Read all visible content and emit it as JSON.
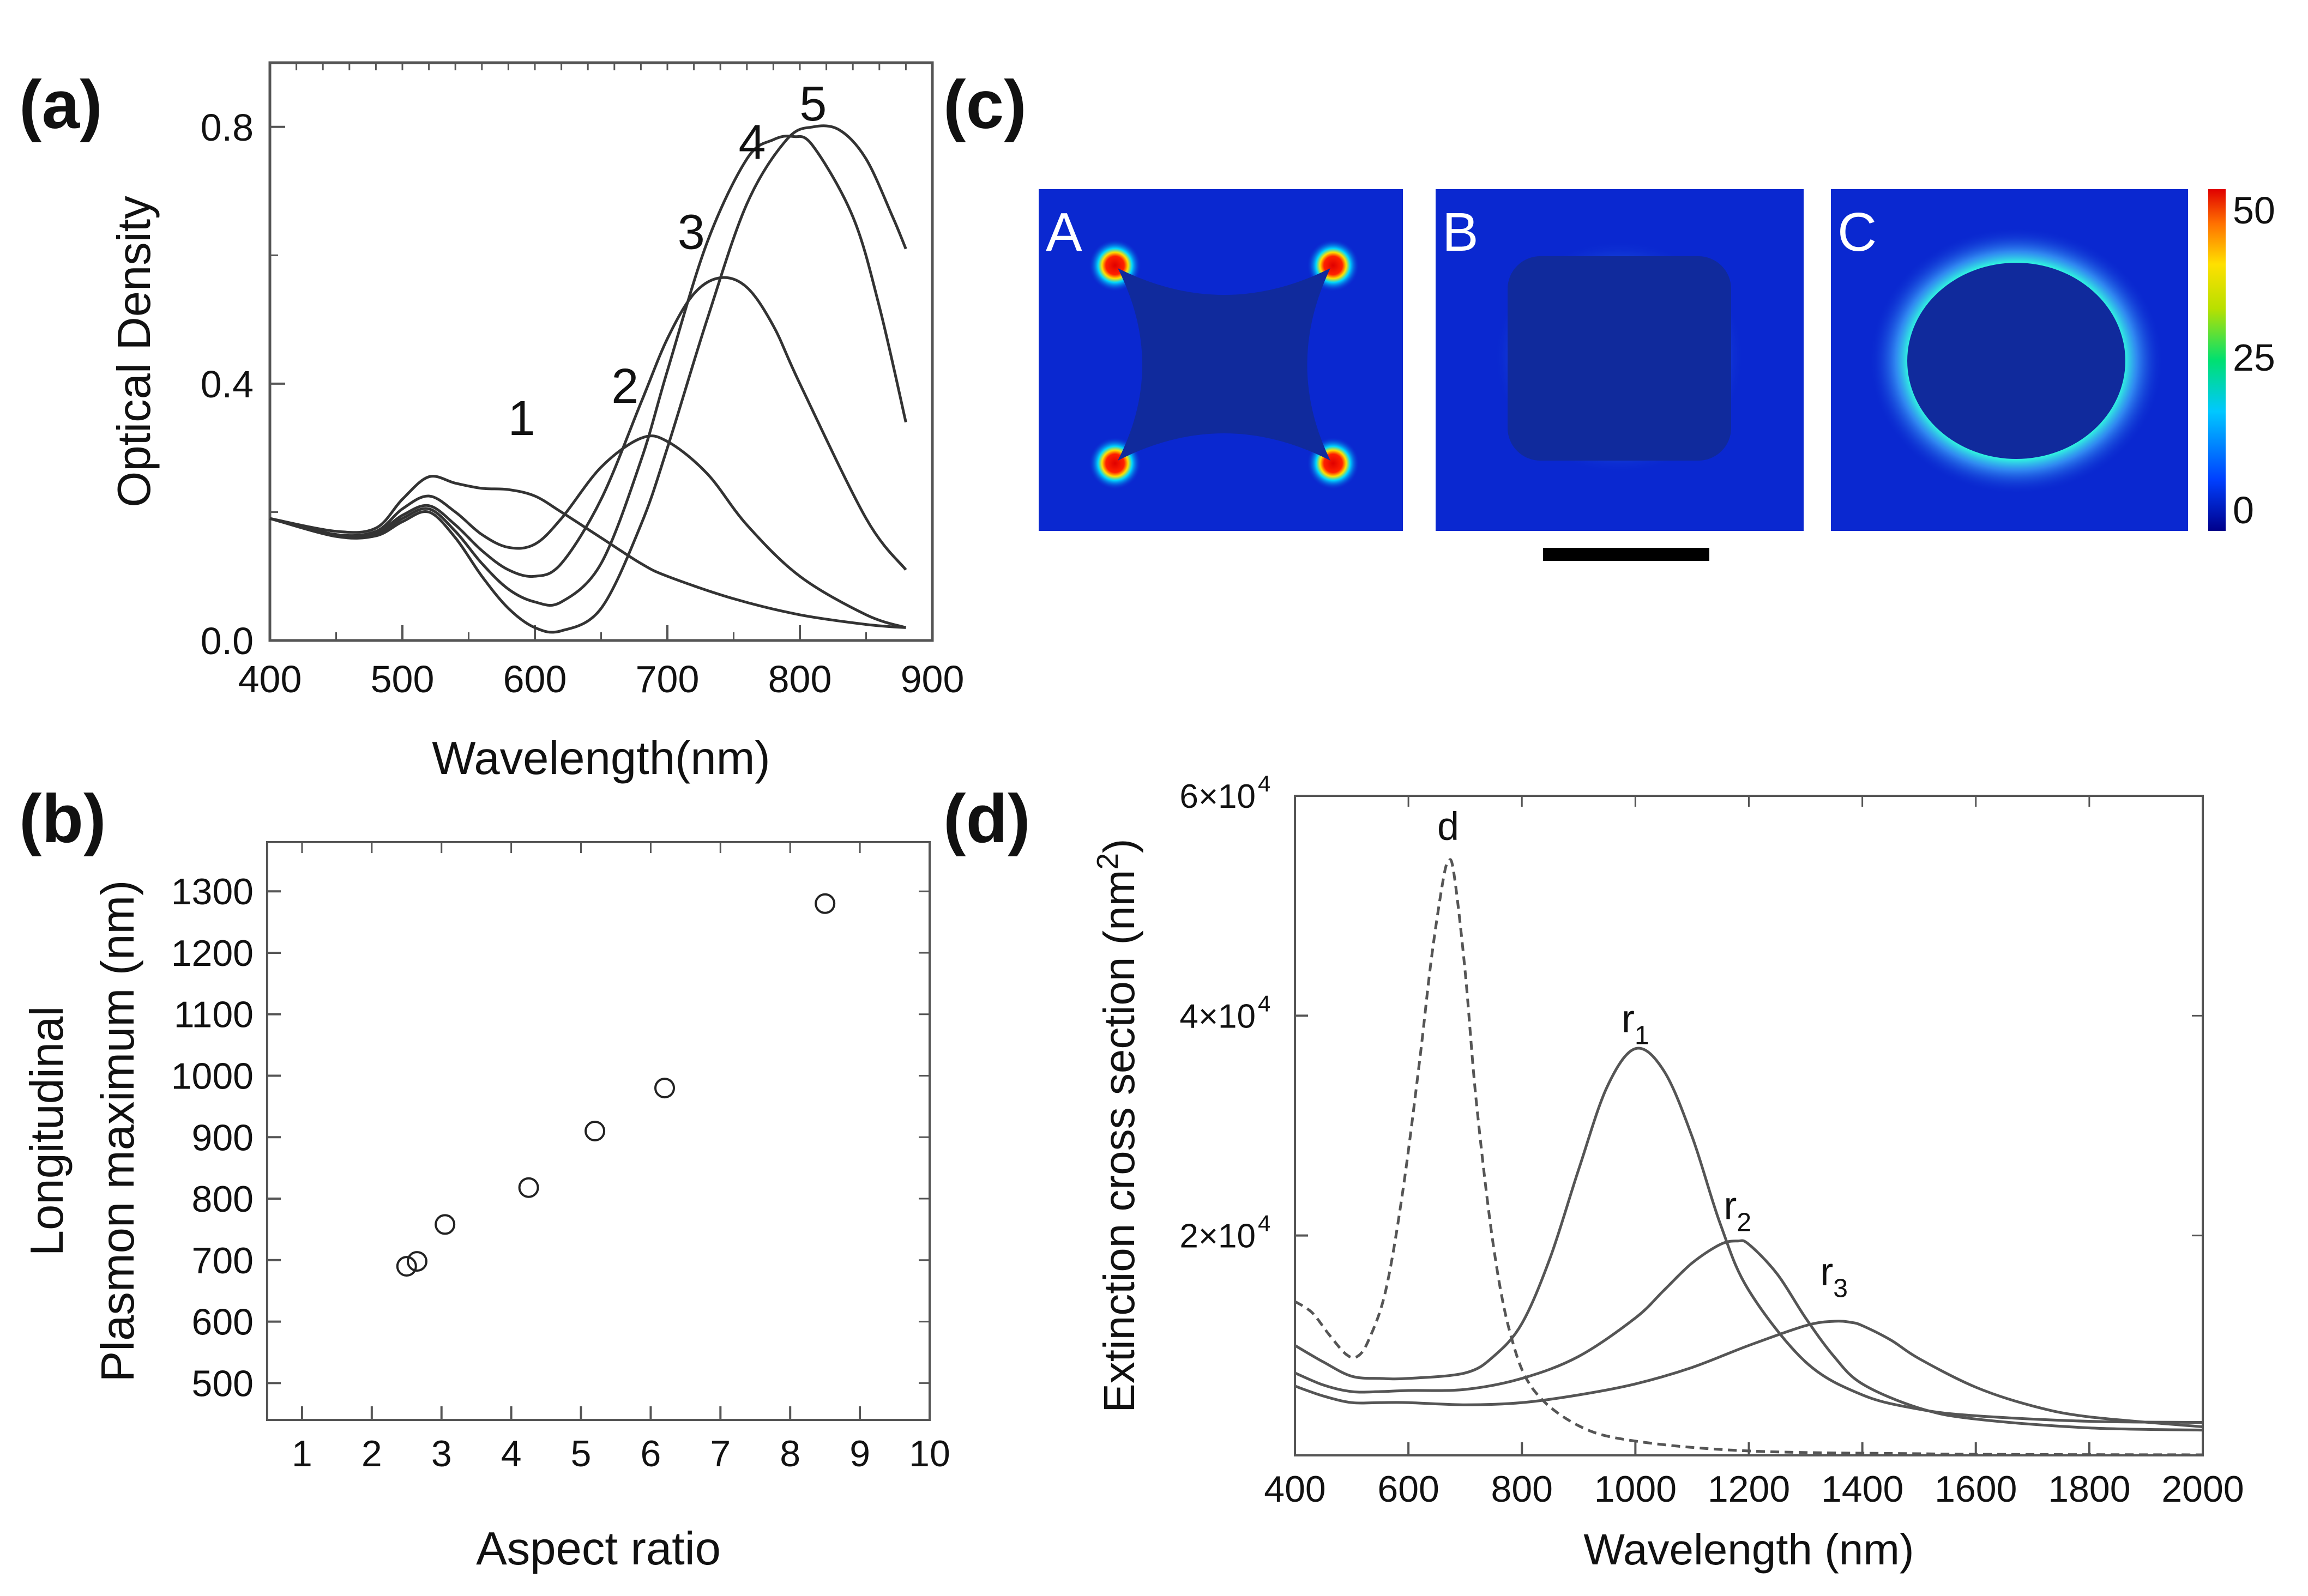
{
  "figure": {
    "panels": {
      "a": {
        "label": "(a)"
      },
      "b": {
        "label": "(b)"
      },
      "c": {
        "label": "(c)"
      },
      "d": {
        "label": "(d)"
      }
    }
  },
  "chart_data": [
    {
      "id": "a",
      "type": "line",
      "xlabel": "Wavelength(nm)",
      "ylabel": "Optical Density",
      "xlim": [
        400,
        900
      ],
      "ylim": [
        0.0,
        0.9
      ],
      "xticks": [
        "400",
        "500",
        "600",
        "700",
        "800",
        "900"
      ],
      "yticks": [
        {
          "v": 0.0,
          "label": "0.0"
        },
        {
          "v": 0.4,
          "label": "0.4"
        },
        {
          "v": 0.8,
          "label": "0.8"
        }
      ],
      "series": [
        {
          "name": "1",
          "label_at": [
            590,
            0.32
          ],
          "x": [
            400,
            450,
            480,
            500,
            520,
            540,
            560,
            580,
            600,
            620,
            650,
            680,
            700,
            750,
            800,
            850,
            880
          ],
          "y": [
            0.19,
            0.17,
            0.175,
            0.22,
            0.255,
            0.245,
            0.237,
            0.235,
            0.225,
            0.2,
            0.16,
            0.12,
            0.1,
            0.065,
            0.04,
            0.025,
            0.02
          ]
        },
        {
          "name": "2",
          "label_at": [
            668,
            0.37
          ],
          "x": [
            400,
            450,
            480,
            500,
            520,
            540,
            560,
            580,
            600,
            620,
            650,
            680,
            700,
            730,
            760,
            800,
            850,
            880
          ],
          "y": [
            0.19,
            0.165,
            0.17,
            0.205,
            0.225,
            0.2,
            0.165,
            0.145,
            0.15,
            0.19,
            0.27,
            0.315,
            0.31,
            0.26,
            0.18,
            0.1,
            0.04,
            0.02
          ]
        },
        {
          "name": "3",
          "label_at": [
            718,
            0.61
          ],
          "x": [
            400,
            450,
            480,
            500,
            520,
            540,
            560,
            580,
            600,
            620,
            650,
            680,
            700,
            720,
            740,
            760,
            780,
            800,
            850,
            880
          ],
          "y": [
            0.19,
            0.165,
            0.168,
            0.195,
            0.21,
            0.18,
            0.14,
            0.11,
            0.1,
            0.12,
            0.22,
            0.37,
            0.47,
            0.54,
            0.565,
            0.55,
            0.49,
            0.4,
            0.19,
            0.11
          ]
        },
        {
          "name": "4",
          "label_at": [
            764,
            0.75
          ],
          "x": [
            400,
            450,
            480,
            500,
            520,
            540,
            560,
            580,
            600,
            620,
            650,
            680,
            700,
            730,
            760,
            780,
            795,
            810,
            840,
            860,
            880
          ],
          "y": [
            0.19,
            0.163,
            0.165,
            0.19,
            0.205,
            0.17,
            0.12,
            0.08,
            0.06,
            0.06,
            0.12,
            0.28,
            0.42,
            0.62,
            0.75,
            0.78,
            0.785,
            0.77,
            0.66,
            0.52,
            0.34
          ]
        },
        {
          "name": "5",
          "label_at": [
            810,
            0.81
          ],
          "x": [
            400,
            450,
            480,
            500,
            520,
            540,
            560,
            580,
            600,
            620,
            650,
            680,
            700,
            730,
            760,
            790,
            810,
            830,
            850,
            870,
            880
          ],
          "y": [
            0.19,
            0.162,
            0.163,
            0.185,
            0.2,
            0.16,
            0.1,
            0.05,
            0.02,
            0.015,
            0.05,
            0.18,
            0.3,
            0.5,
            0.68,
            0.78,
            0.8,
            0.795,
            0.75,
            0.66,
            0.61
          ]
        }
      ]
    },
    {
      "id": "b",
      "type": "scatter",
      "xlabel": "Aspect ratio",
      "ylabel_lines": [
        "Longitudinal",
        "Plasmon maximum (nm)"
      ],
      "xlim": [
        0.5,
        10
      ],
      "ylim": [
        440,
        1380
      ],
      "xticks": [
        "1",
        "2",
        "3",
        "4",
        "5",
        "6",
        "7",
        "8",
        "9",
        "10"
      ],
      "yticks": [
        "500",
        "600",
        "700",
        "800",
        "900",
        "1000",
        "1100",
        "1200",
        "1300"
      ],
      "x": [
        2.5,
        2.65,
        3.05,
        4.25,
        5.2,
        6.2,
        8.5
      ],
      "y": [
        690,
        698,
        758,
        818,
        910,
        980,
        1280
      ]
    },
    {
      "id": "c",
      "type": "heatmap",
      "subpanels": [
        {
          "label": "A",
          "shape": "concave square"
        },
        {
          "label": "B",
          "shape": "rounded square"
        },
        {
          "label": "C",
          "shape": "circle"
        }
      ],
      "colorbar": {
        "min": 0,
        "max": 50,
        "ticks": [
          "50",
          "25",
          "0"
        ],
        "colors": [
          "#00008b",
          "#0040ff",
          "#00c8ff",
          "#00e070",
          "#b8e000",
          "#ffe000",
          "#ff7000",
          "#e00000"
        ]
      },
      "background_color": "#0a28d0",
      "scale_bar": true
    },
    {
      "id": "d",
      "type": "line",
      "xlabel": "Wavelength (nm)",
      "ylabel": "Extinction cross section (nm",
      "ylabel_sup": "2",
      "ylabel_close": ")",
      "xlim": [
        400,
        2000
      ],
      "ylim": [
        0,
        60000
      ],
      "xticks": [
        "400",
        "600",
        "800",
        "1000",
        "1200",
        "1400",
        "1600",
        "1800",
        "2000"
      ],
      "yticks": [
        {
          "v": 20000,
          "mant": "2×10",
          "exp": "4"
        },
        {
          "v": 40000,
          "mant": "4×10",
          "exp": "4"
        },
        {
          "v": 60000,
          "mant": "6×10",
          "exp": "4"
        }
      ],
      "series": [
        {
          "name": "d",
          "dashed": true,
          "label_at": [
            670,
            56000
          ],
          "x": [
            400,
            430,
            460,
            490,
            510,
            530,
            560,
            590,
            620,
            640,
            660,
            670,
            680,
            700,
            720,
            750,
            780,
            820,
            900,
            1000,
            1200,
            1500,
            1700,
            2000
          ],
          "y": [
            14000,
            13000,
            11000,
            9200,
            9000,
            10500,
            15000,
            24000,
            36000,
            45000,
            52000,
            54000,
            53000,
            44000,
            32000,
            19000,
            11000,
            6000,
            2700,
            1300,
            400,
            150,
            80,
            50
          ]
        },
        {
          "name": "r",
          "sub": "1",
          "dashed": false,
          "label_at": [
            1000,
            38500
          ],
          "x": [
            400,
            450,
            500,
            550,
            600,
            700,
            750,
            800,
            850,
            900,
            950,
            1000,
            1050,
            1100,
            1150,
            1200,
            1300,
            1400,
            1500,
            1600,
            1800,
            2000
          ],
          "y": [
            10000,
            8500,
            7200,
            7000,
            7000,
            7500,
            9000,
            12000,
            18000,
            26000,
            33500,
            37000,
            35000,
            29000,
            21000,
            15000,
            8500,
            5500,
            4200,
            3600,
            3100,
            3000
          ]
        },
        {
          "name": "r",
          "sub": "2",
          "dashed": false,
          "label_at": [
            1180,
            21500
          ],
          "x": [
            400,
            450,
            500,
            550,
            600,
            700,
            800,
            900,
            1000,
            1050,
            1100,
            1150,
            1180,
            1200,
            1250,
            1300,
            1350,
            1400,
            1500,
            1600,
            1800,
            2000
          ],
          "y": [
            7500,
            6400,
            5800,
            5800,
            5900,
            6000,
            7000,
            9000,
            12500,
            15000,
            17500,
            19200,
            19500,
            19200,
            16500,
            12500,
            9000,
            6500,
            4300,
            3300,
            2500,
            2300
          ]
        },
        {
          "name": "r",
          "sub": "3",
          "dashed": false,
          "label_at": [
            1350,
            15500
          ],
          "x": [
            400,
            450,
            500,
            550,
            600,
            700,
            800,
            900,
            1000,
            1100,
            1200,
            1300,
            1350,
            1380,
            1400,
            1450,
            1500,
            1600,
            1700,
            1800,
            2000
          ],
          "y": [
            6300,
            5400,
            4800,
            4800,
            4800,
            4600,
            4800,
            5500,
            6500,
            8000,
            10000,
            11800,
            12200,
            12100,
            11800,
            10500,
            8800,
            6200,
            4500,
            3500,
            2600
          ]
        }
      ]
    }
  ]
}
